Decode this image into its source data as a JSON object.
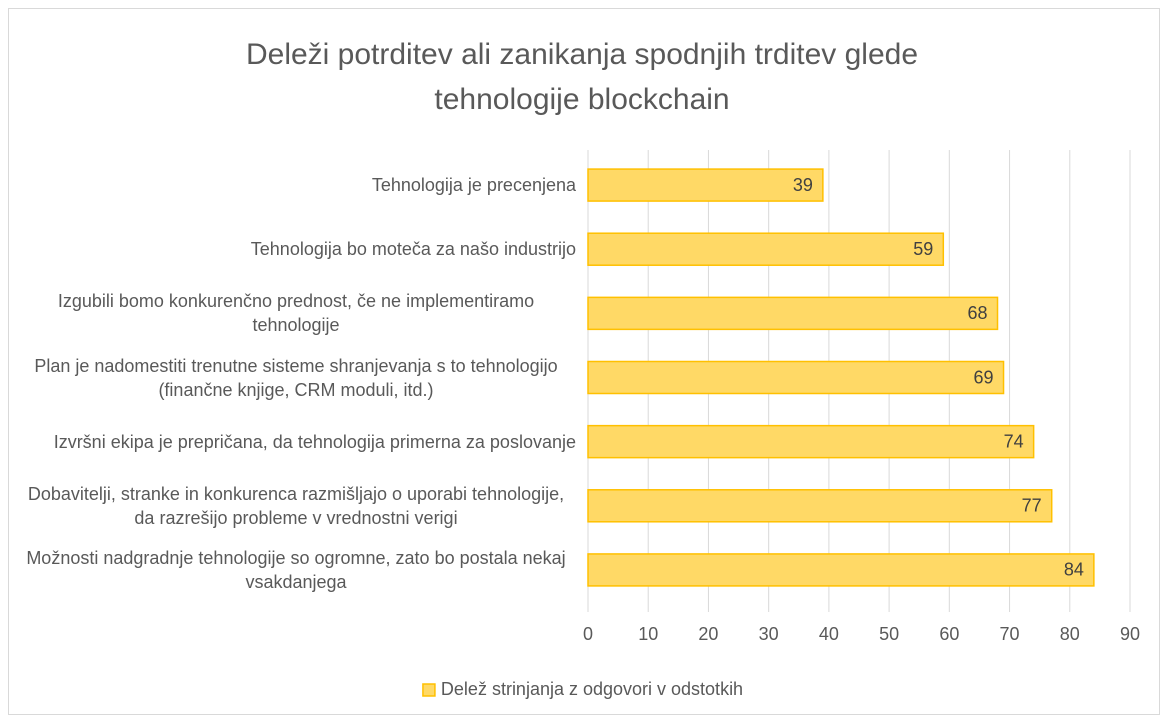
{
  "chart_data": {
    "type": "bar",
    "orientation": "horizontal",
    "title": "Deleži potrditev ali zanikanja spodnjih trditev glede tehnologije blockchain",
    "categories": [
      "Tehnologija je precenjena",
      "Tehnologija bo moteča za našo industrijo",
      "Izgubili bomo konkurenčno prednost, če ne implementiramo tehnologije",
      "Plan je nadomestiti trenutne sisteme shranjevanja s to tehnologijo (finančne knjige, CRM moduli, itd.)",
      "Izvršni ekipa je prepričana, da tehnologija primerna za poslovanje",
      "Dobavitelji, stranke in konkurenca razmišljajo o uporabi tehnologije, da razrešijo probleme v vrednostni verigi",
      "Možnosti nadgradnje tehnologije so ogromne, zato bo postala nekaj vsakdanjega"
    ],
    "series": [
      {
        "name": "Delež strinjanja z odgovori v odstotkih",
        "color": "#ffd966",
        "values": [
          39,
          59,
          68,
          69,
          74,
          77,
          84
        ]
      }
    ],
    "xlim": [
      0,
      90
    ],
    "xticks": [
      0,
      10,
      20,
      30,
      40,
      50,
      60,
      70,
      80,
      90
    ],
    "grid": true,
    "legend": "bottom"
  }
}
